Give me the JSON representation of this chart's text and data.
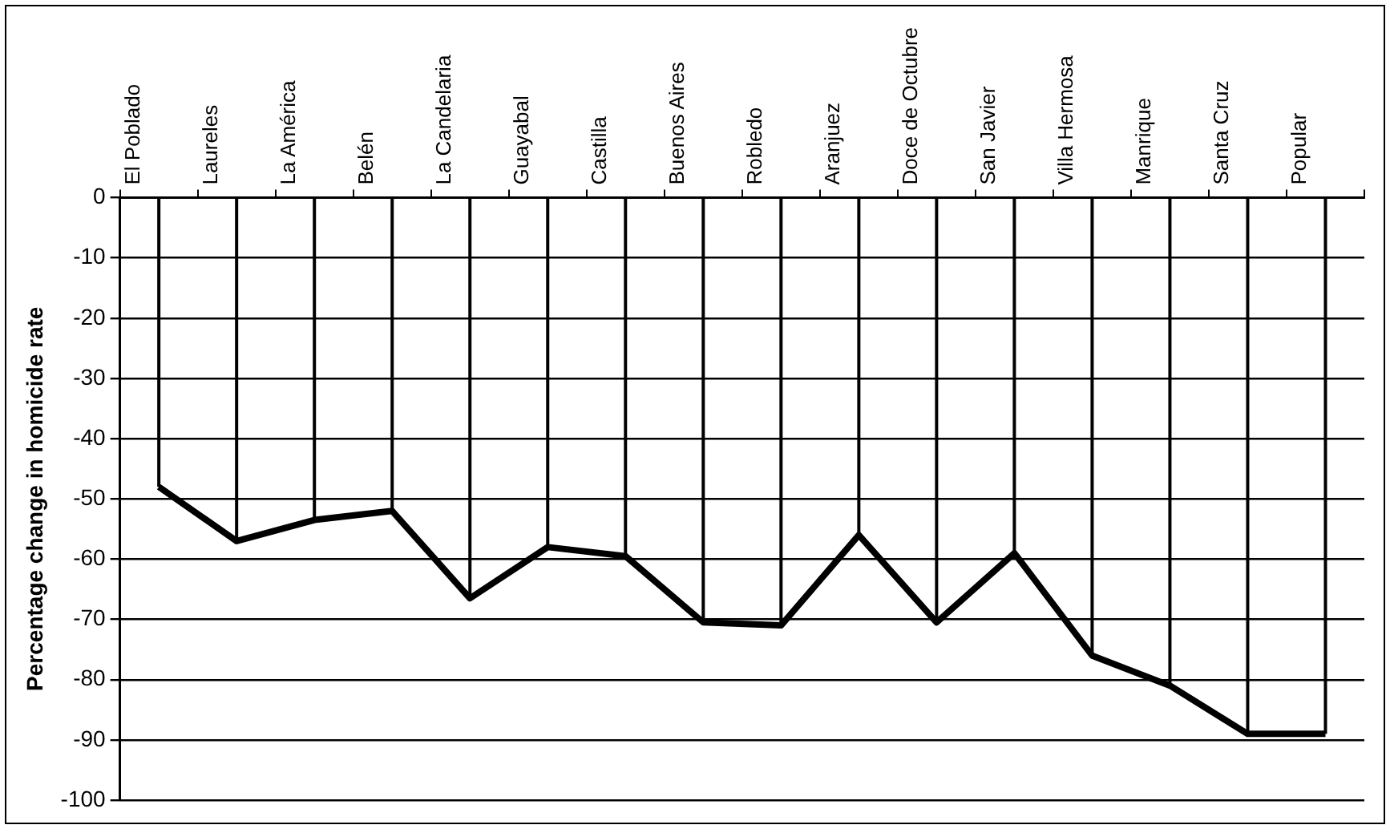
{
  "chart_data": {
    "type": "line",
    "ylabel": "Percentage change in homicide rate",
    "categories": [
      "El Poblado",
      "Laureles",
      "La América",
      "Belén",
      "La Candelaria",
      "Guayabal",
      "Castilla",
      "Buenos Aires",
      "Robledo",
      "Aranjuez",
      "Doce de Octubre",
      "San Javier",
      "Villa Hermosa",
      "Manrique",
      "Santa Cruz",
      "Popular"
    ],
    "series": [
      {
        "color": "#000000",
        "values": [
          -48,
          -57,
          -53.5,
          -52,
          -66.5,
          -58,
          -59.5,
          -70.5,
          -71,
          -56,
          -70.5,
          -59,
          -76,
          -81,
          -89,
          -89
        ],
        "errors": [
          [
            -48,
            0
          ],
          [
            -57,
            0
          ],
          [
            -53.5,
            0
          ],
          [
            -52,
            0
          ],
          [
            -66.5,
            0
          ],
          [
            -58,
            0
          ],
          [
            -59.5,
            0
          ],
          [
            -70.5,
            0
          ],
          [
            -71,
            0
          ],
          [
            -56,
            0
          ],
          [
            -70.5,
            0
          ],
          [
            -59,
            0
          ],
          [
            -76,
            0
          ],
          [
            -81,
            0
          ],
          [
            -89,
            0
          ],
          [
            -89,
            0
          ]
        ]
      }
    ],
    "ylim": [
      -100,
      0
    ],
    "yticks": [
      0,
      -10,
      -20,
      -30,
      -40,
      -50,
      -60,
      -70,
      -80,
      -90,
      -100
    ],
    "grid": "y",
    "legend": false,
    "marker": "none",
    "line_style": "solid"
  }
}
